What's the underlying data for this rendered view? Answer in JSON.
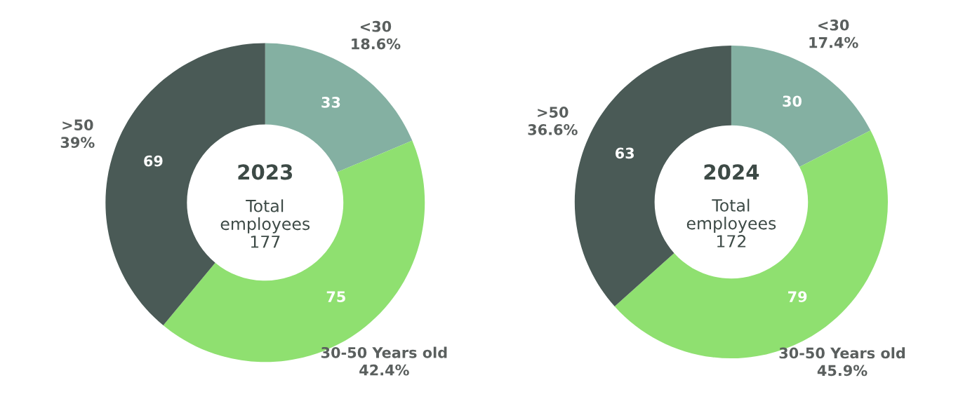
{
  "chart_data": [
    {
      "type": "donut",
      "title": "2023",
      "subtitle": "Total\nemployees\n177",
      "categories": [
        "<30",
        "30-50 Years old",
        ">50"
      ],
      "values": [
        33,
        75,
        69
      ],
      "colors": [
        "#84b0a2",
        "#8fe070",
        "#4a5a56"
      ],
      "data_labels": true,
      "annotations": [
        "18.6%",
        "42.4%",
        "39%"
      ]
    },
    {
      "type": "donut",
      "title": "2024",
      "subtitle": "Total\nemployees\n172",
      "categories": [
        "<30",
        "30-50 Years old",
        ">50"
      ],
      "values": [
        30,
        79,
        63
      ],
      "colors": [
        "#84b0a2",
        "#8fe070",
        "#4a5a56"
      ],
      "data_labels": true,
      "annotations": [
        "17.4%",
        "45.9%",
        "36.6%"
      ]
    }
  ]
}
